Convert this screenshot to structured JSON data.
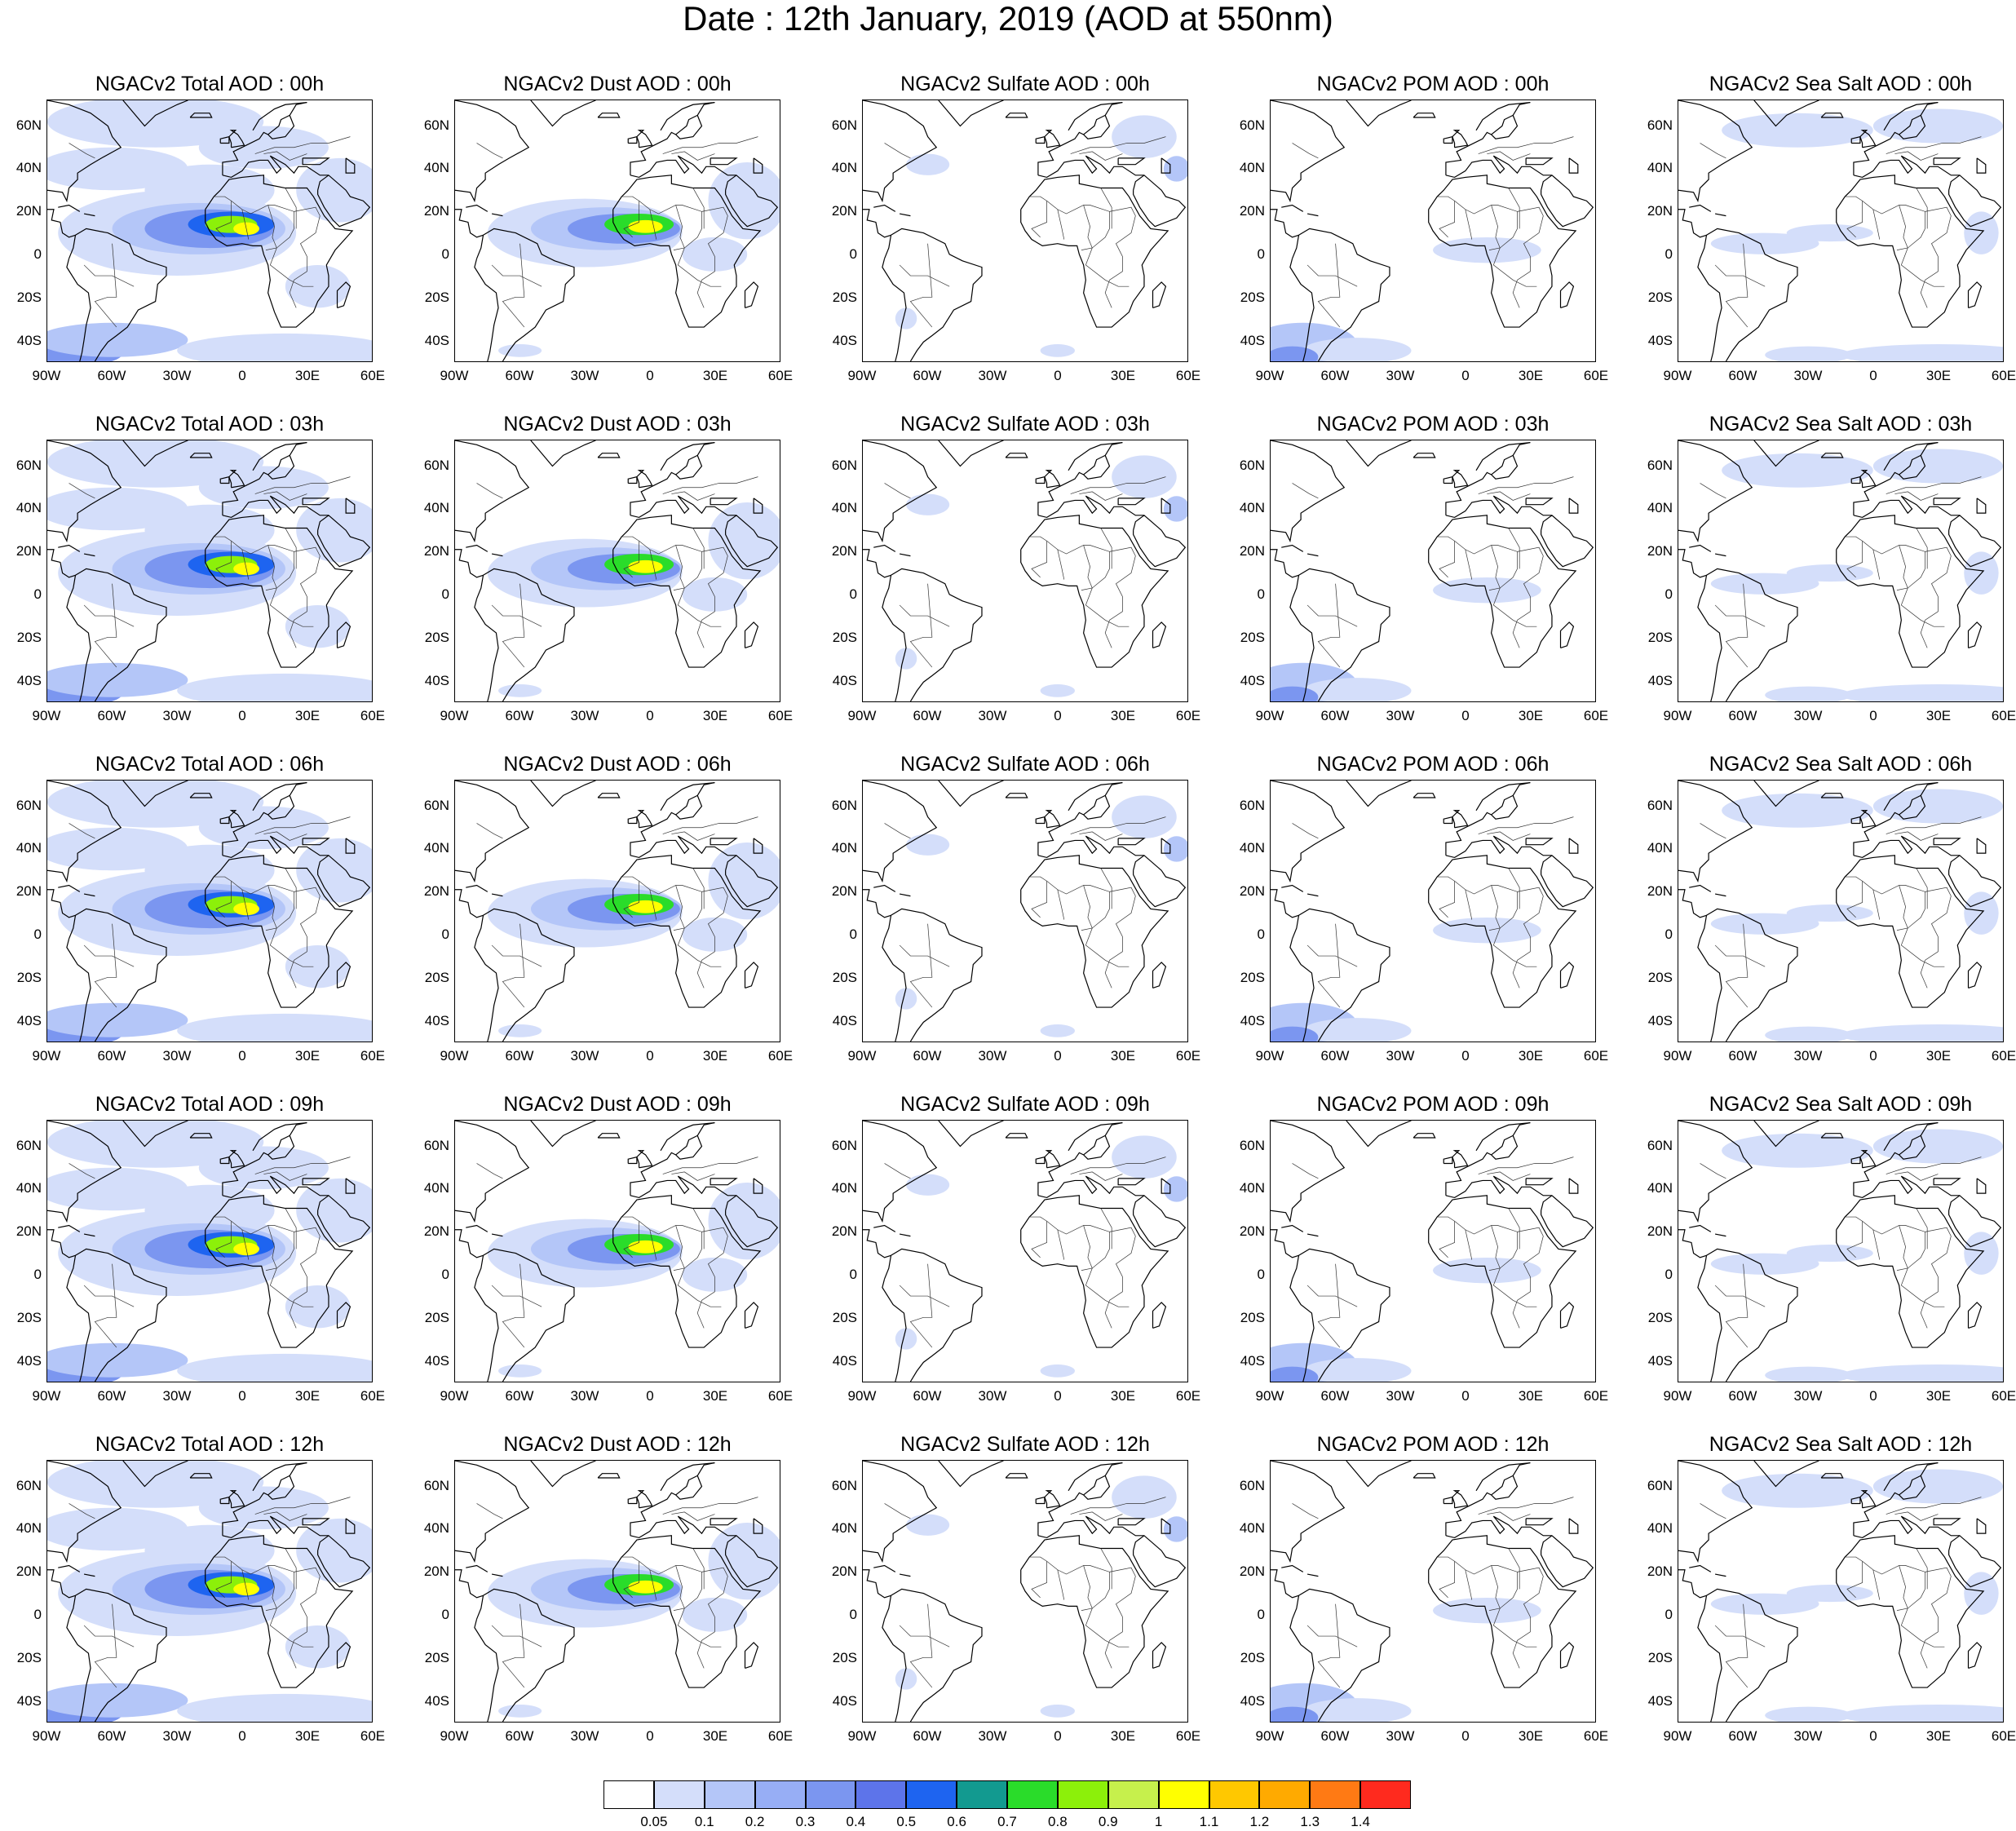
{
  "title": "Date : 12th January, 2019 (AOD at 550nm)",
  "lat_labels": [
    "60N",
    "40N",
    "20N",
    "0",
    "20S",
    "40S"
  ],
  "lon_labels": [
    "90W",
    "60W",
    "30W",
    "0",
    "30E",
    "60E"
  ],
  "map_extent": {
    "lon": [
      -90,
      60
    ],
    "lat": [
      -50,
      72
    ]
  },
  "panel_titles": [
    [
      "NGACv2 Total AOD : 00h",
      "NGACv2 Dust AOD : 00h",
      "NGACv2 Sulfate AOD : 00h",
      "NGACv2 POM AOD : 00h",
      "NGACv2 Sea Salt AOD : 00h"
    ],
    [
      "NGACv2 Total AOD : 03h",
      "NGACv2 Dust AOD : 03h",
      "NGACv2 Sulfate AOD : 03h",
      "NGACv2 POM AOD : 03h",
      "NGACv2 Sea Salt AOD : 03h"
    ],
    [
      "NGACv2 Total AOD : 06h",
      "NGACv2 Dust AOD : 06h",
      "NGACv2 Sulfate AOD : 06h",
      "NGACv2 POM AOD : 06h",
      "NGACv2 Sea Salt AOD : 06h"
    ],
    [
      "NGACv2 Total AOD : 09h",
      "NGACv2 Dust AOD : 09h",
      "NGACv2 Sulfate AOD : 09h",
      "NGACv2 POM AOD : 09h",
      "NGACv2 Sea Salt  AOD : 09h"
    ],
    [
      "NGACv2 Total AOD  : 12h",
      "NGACv2 Dust AOD : 12h",
      "NGACv2 Sulfate AOD : 12h",
      "NGACv2 POM  AOD : 12h",
      "NGACv2 Sea Salt  AOD : 12h"
    ]
  ],
  "colorbar": {
    "labels": [
      "0.05",
      "0.1",
      "0.2",
      "0.3",
      "0.4",
      "0.5",
      "0.6",
      "0.7",
      "0.8",
      "0.9",
      "1",
      "1.1",
      "1.2",
      "1.3",
      "1.4"
    ],
    "colors": [
      "#ffffff",
      "#d4defa",
      "#b4c6f8",
      "#97aef5",
      "#7b96f0",
      "#5d74ea",
      "#1e64f0",
      "#129a90",
      "#2adc2a",
      "#8cf00a",
      "#c6f04c",
      "#ffff00",
      "#ffc800",
      "#ffaa00",
      "#ff7a14",
      "#ff2a1e"
    ]
  }
}
